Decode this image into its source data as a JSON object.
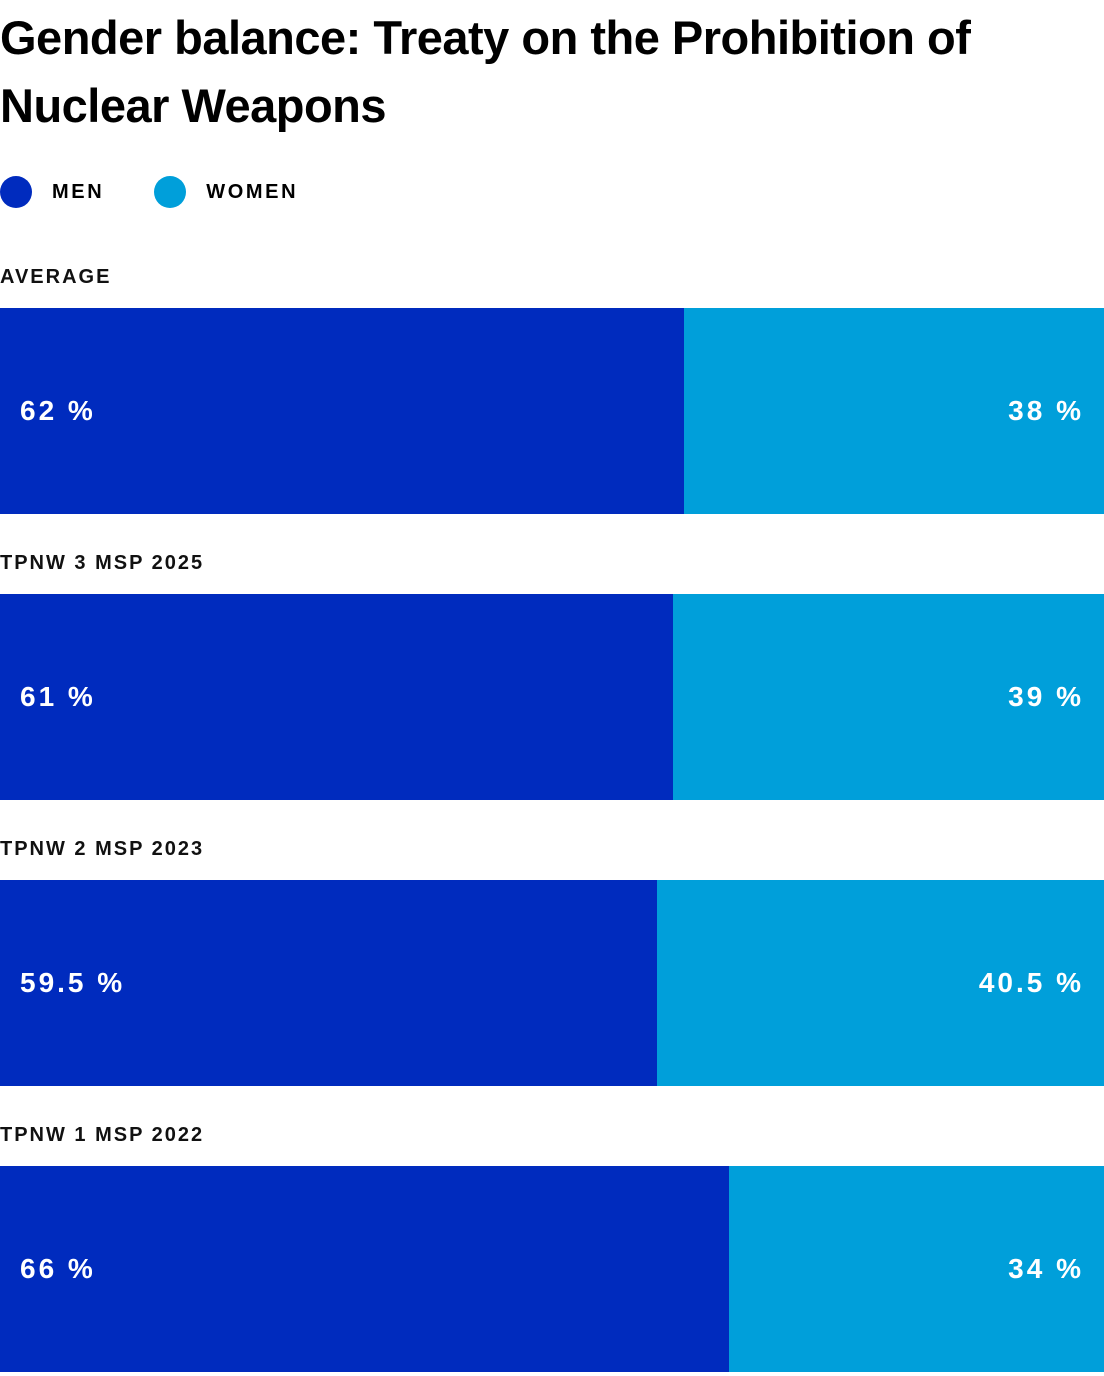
{
  "chart_data": {
    "type": "bar",
    "title": "Gender balance: Treaty on the Prohibition of Nuclear Weapons",
    "legend": {
      "placement": "top-left",
      "items": [
        {
          "label": "MEN",
          "color": "#002BBE"
        },
        {
          "label": "WOMEN",
          "color": "#009FDA"
        }
      ]
    },
    "categories": [
      "AVERAGE",
      "TPNW 3 MSP 2025",
      "TPNW 2 MSP 2023",
      "TPNW 1 MSP 2022"
    ],
    "series": [
      {
        "name": "MEN",
        "color": "#002BBE",
        "values": [
          62,
          61,
          59.5,
          66
        ],
        "labels": [
          "62 %",
          "61 %",
          "59.5 %",
          "66 %"
        ]
      },
      {
        "name": "WOMEN",
        "color": "#009FDA",
        "values": [
          38,
          39,
          40.5,
          34
        ],
        "labels": [
          "38 %",
          "39 %",
          "40.5 %",
          "34 %"
        ]
      }
    ],
    "stacked": true,
    "xlim": [
      0,
      100
    ],
    "grid": false
  }
}
